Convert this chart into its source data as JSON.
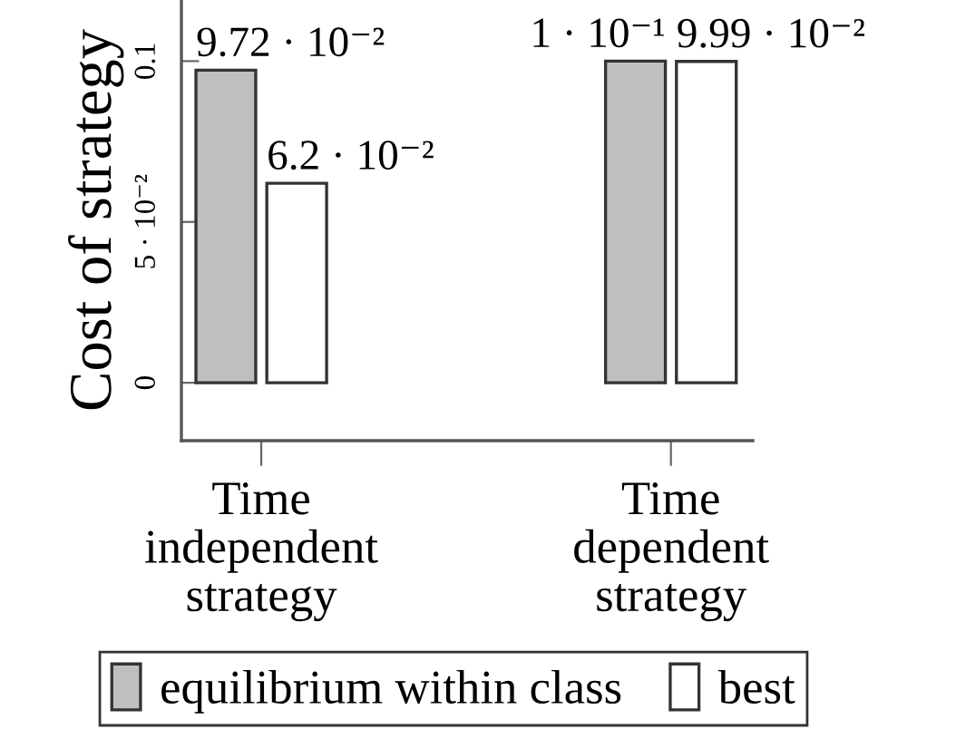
{
  "chart_data": {
    "type": "bar",
    "ylabel": "Cost of strategy",
    "categories": [
      "Time\nindependent\nstrategy",
      "Time\ndependent\nstrategy"
    ],
    "series": [
      {
        "name": "equilibrium within class",
        "color": "#bfbfbf",
        "values": [
          0.0972,
          0.1
        ],
        "value_labels": [
          "9.72 · 10⁻²",
          "1 · 10⁻¹"
        ]
      },
      {
        "name": "best",
        "color": "#ffffff",
        "values": [
          0.062,
          0.0999
        ],
        "value_labels": [
          "6.2 · 10⁻²",
          "9.99 · 10⁻²"
        ]
      }
    ],
    "ylim": [
      -0.018,
      0.119
    ],
    "yticks": [
      0,
      {
        "value": 0.05,
        "label": "5 · 10⁻²"
      },
      0.1
    ],
    "legend": "bottom",
    "grid": false
  }
}
